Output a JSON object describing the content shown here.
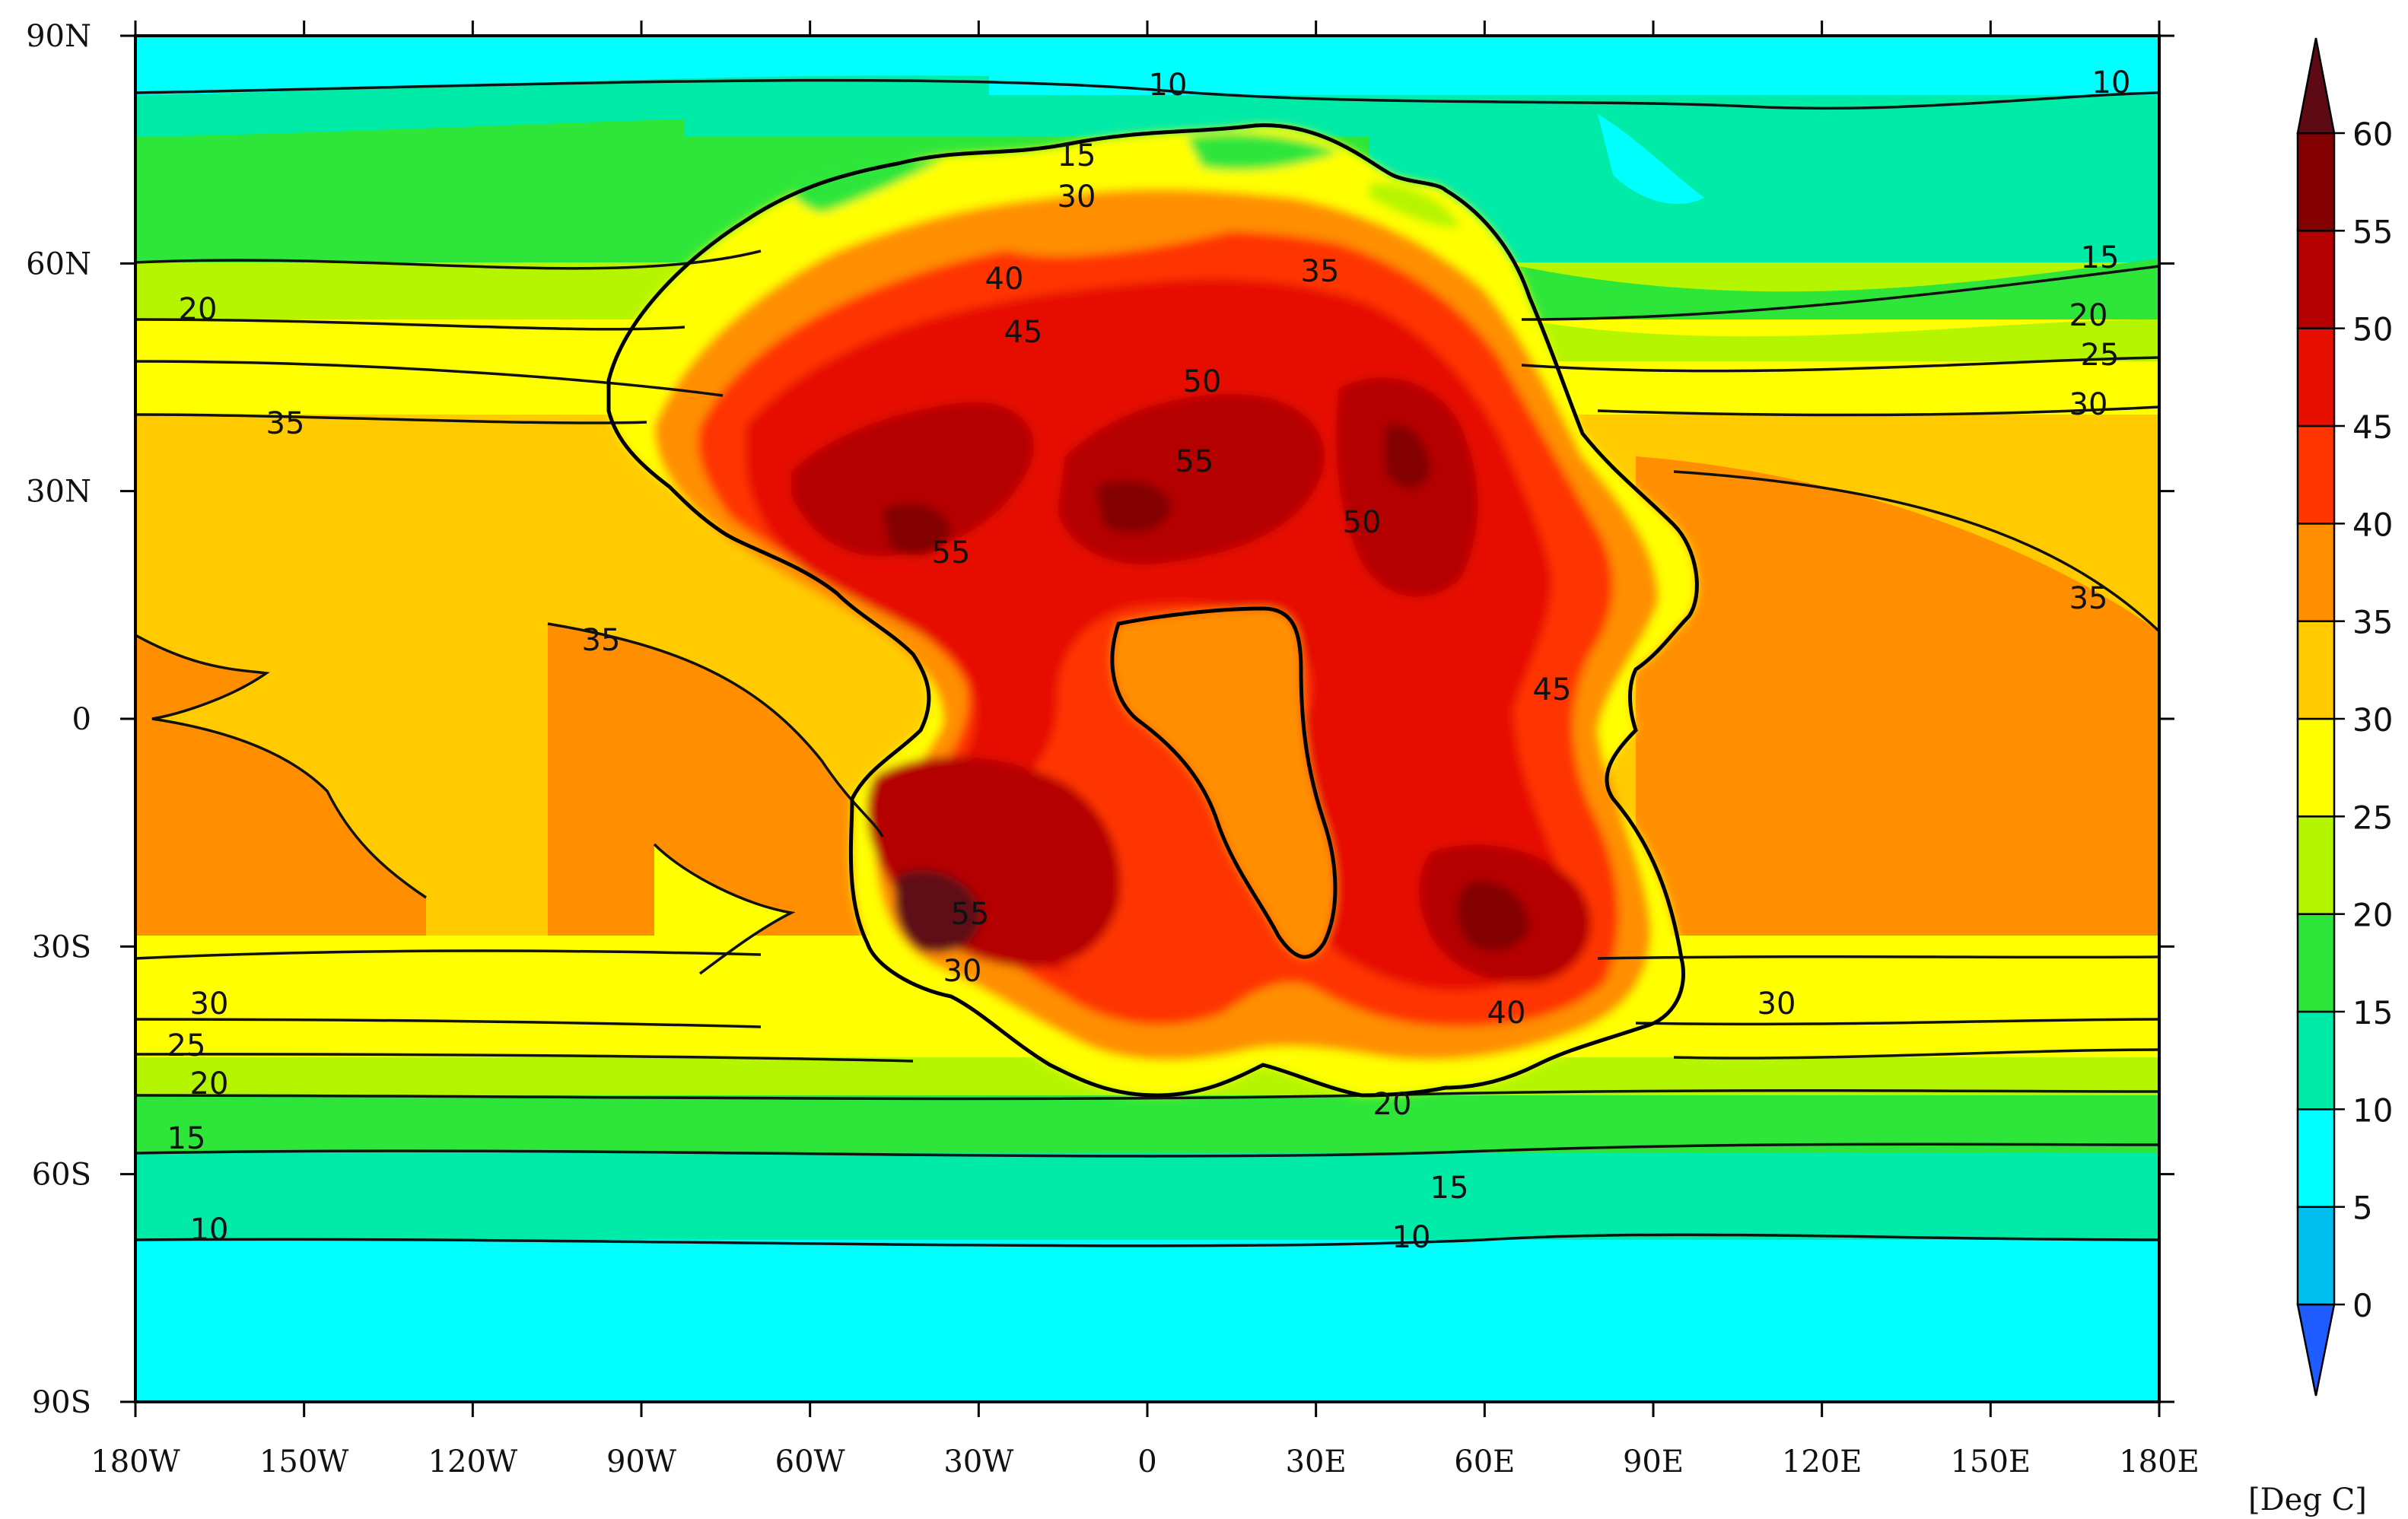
{
  "map": {
    "lat_labels": [
      "90N",
      "60N",
      "30N",
      "0",
      "30S",
      "60S",
      "90S"
    ],
    "lon_labels": [
      "180W",
      "150W",
      "120W",
      "90W",
      "60W",
      "30W",
      "0",
      "30E",
      "60E",
      "90E",
      "120E",
      "150E",
      "180E"
    ],
    "colors": {
      "c0": "#1e5cff",
      "c5": "#00bfee",
      "c10": "#00ffff",
      "c15": "#00eaa8",
      "c20": "#2ee63a",
      "c25": "#b6f500",
      "c30": "#ffff00",
      "c35": "#ffcb00",
      "c40": "#ff8f00",
      "c45": "#ff3600",
      "c50": "#e60f00",
      "c55": "#b50000",
      "c60": "#820000",
      "c65": "#5e0a14"
    },
    "contour_labels": [
      {
        "text": "10",
        "name": "north-10"
      },
      {
        "text": "10",
        "name": "north-east-10"
      },
      {
        "text": "15",
        "name": "north-15"
      },
      {
        "text": "20",
        "name": "north-20"
      },
      {
        "text": "30",
        "name": "north-30"
      },
      {
        "text": "35",
        "name": "north-35"
      },
      {
        "text": "40",
        "name": "north-40"
      },
      {
        "text": "45",
        "name": "north-45"
      },
      {
        "text": "50",
        "name": "north-50"
      },
      {
        "text": "55",
        "name": "north-55"
      },
      {
        "text": "15",
        "name": "east-15"
      },
      {
        "text": "20",
        "name": "east-20"
      },
      {
        "text": "25",
        "name": "east-25"
      },
      {
        "text": "30",
        "name": "east-30"
      },
      {
        "text": "35",
        "name": "east-35"
      },
      {
        "text": "35",
        "name": "pacific-35"
      },
      {
        "text": "35",
        "name": "south-35"
      },
      {
        "text": "30",
        "name": "south-30"
      },
      {
        "text": "25",
        "name": "south-25"
      },
      {
        "text": "20",
        "name": "south-20"
      },
      {
        "text": "15",
        "name": "south-15"
      },
      {
        "text": "10",
        "name": "south-10"
      },
      {
        "text": "20",
        "name": "south-mid-20"
      },
      {
        "text": "15",
        "name": "south-mid-15"
      },
      {
        "text": "10",
        "name": "south-mid-10"
      },
      {
        "text": "30",
        "name": "south-east-30"
      },
      {
        "text": "40",
        "name": "south-east-40"
      },
      {
        "text": "55",
        "name": "south-west-55"
      },
      {
        "text": "30",
        "name": "south-west-30"
      },
      {
        "text": "45",
        "name": "interior-45"
      },
      {
        "text": "50",
        "name": "interior-50"
      },
      {
        "text": "55",
        "name": "interior-55"
      }
    ]
  },
  "colorbar": {
    "ticks": [
      "0",
      "5",
      "10",
      "15",
      "20",
      "25",
      "30",
      "35",
      "40",
      "45",
      "50",
      "55",
      "60"
    ],
    "unit": "[Deg C]"
  }
}
